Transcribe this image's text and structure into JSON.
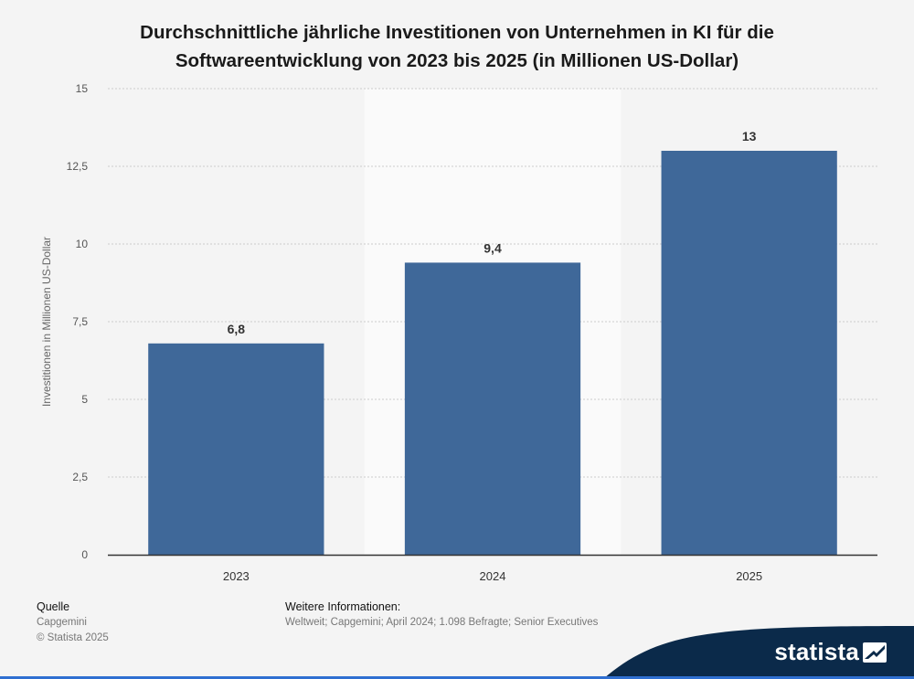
{
  "title_lines": [
    "Durchschnittliche jährliche Investitionen von Unternehmen in KI für die",
    "Softwareentwicklung von 2023 bis 2025 (in Millionen US-Dollar)"
  ],
  "colors": {
    "bar": "#3f6899",
    "highlight_band": "#fafafa",
    "grid": "#cccccc",
    "axis": "#333333",
    "logo_bg": "#0b2a4a",
    "accent": "#2f6fd1"
  },
  "chart_data": {
    "type": "bar",
    "title": "Durchschnittliche jährliche Investitionen von Unternehmen in KI für die Softwareentwicklung von 2023 bis 2025 (in Millionen US-Dollar)",
    "categories": [
      "2023",
      "2024",
      "2025"
    ],
    "values": [
      6.8,
      9.4,
      13
    ],
    "value_labels": [
      "6,8",
      "9,4",
      "13"
    ],
    "xlabel": "",
    "ylabel": "Investitionen in Millionen US-Dollar",
    "ylim": [
      0,
      15
    ],
    "yticks": [
      0,
      2.5,
      5,
      7.5,
      10,
      12.5,
      15
    ],
    "ytick_labels": [
      "0",
      "2,5",
      "5",
      "7,5",
      "10",
      "12,5",
      "15"
    ],
    "grid": true,
    "legend": "none",
    "highlighted_category": "2024"
  },
  "footer": {
    "source_heading": "Quelle",
    "source_name": "Capgemini",
    "copyright": "© Statista 2025",
    "info_heading": "Weitere Informationen:",
    "info_text": "Weltweit; Capgemini; April 2024; 1.098 Befragte; Senior Executives"
  },
  "logo": {
    "text": "statista",
    "icon": "statista-logo-icon"
  }
}
